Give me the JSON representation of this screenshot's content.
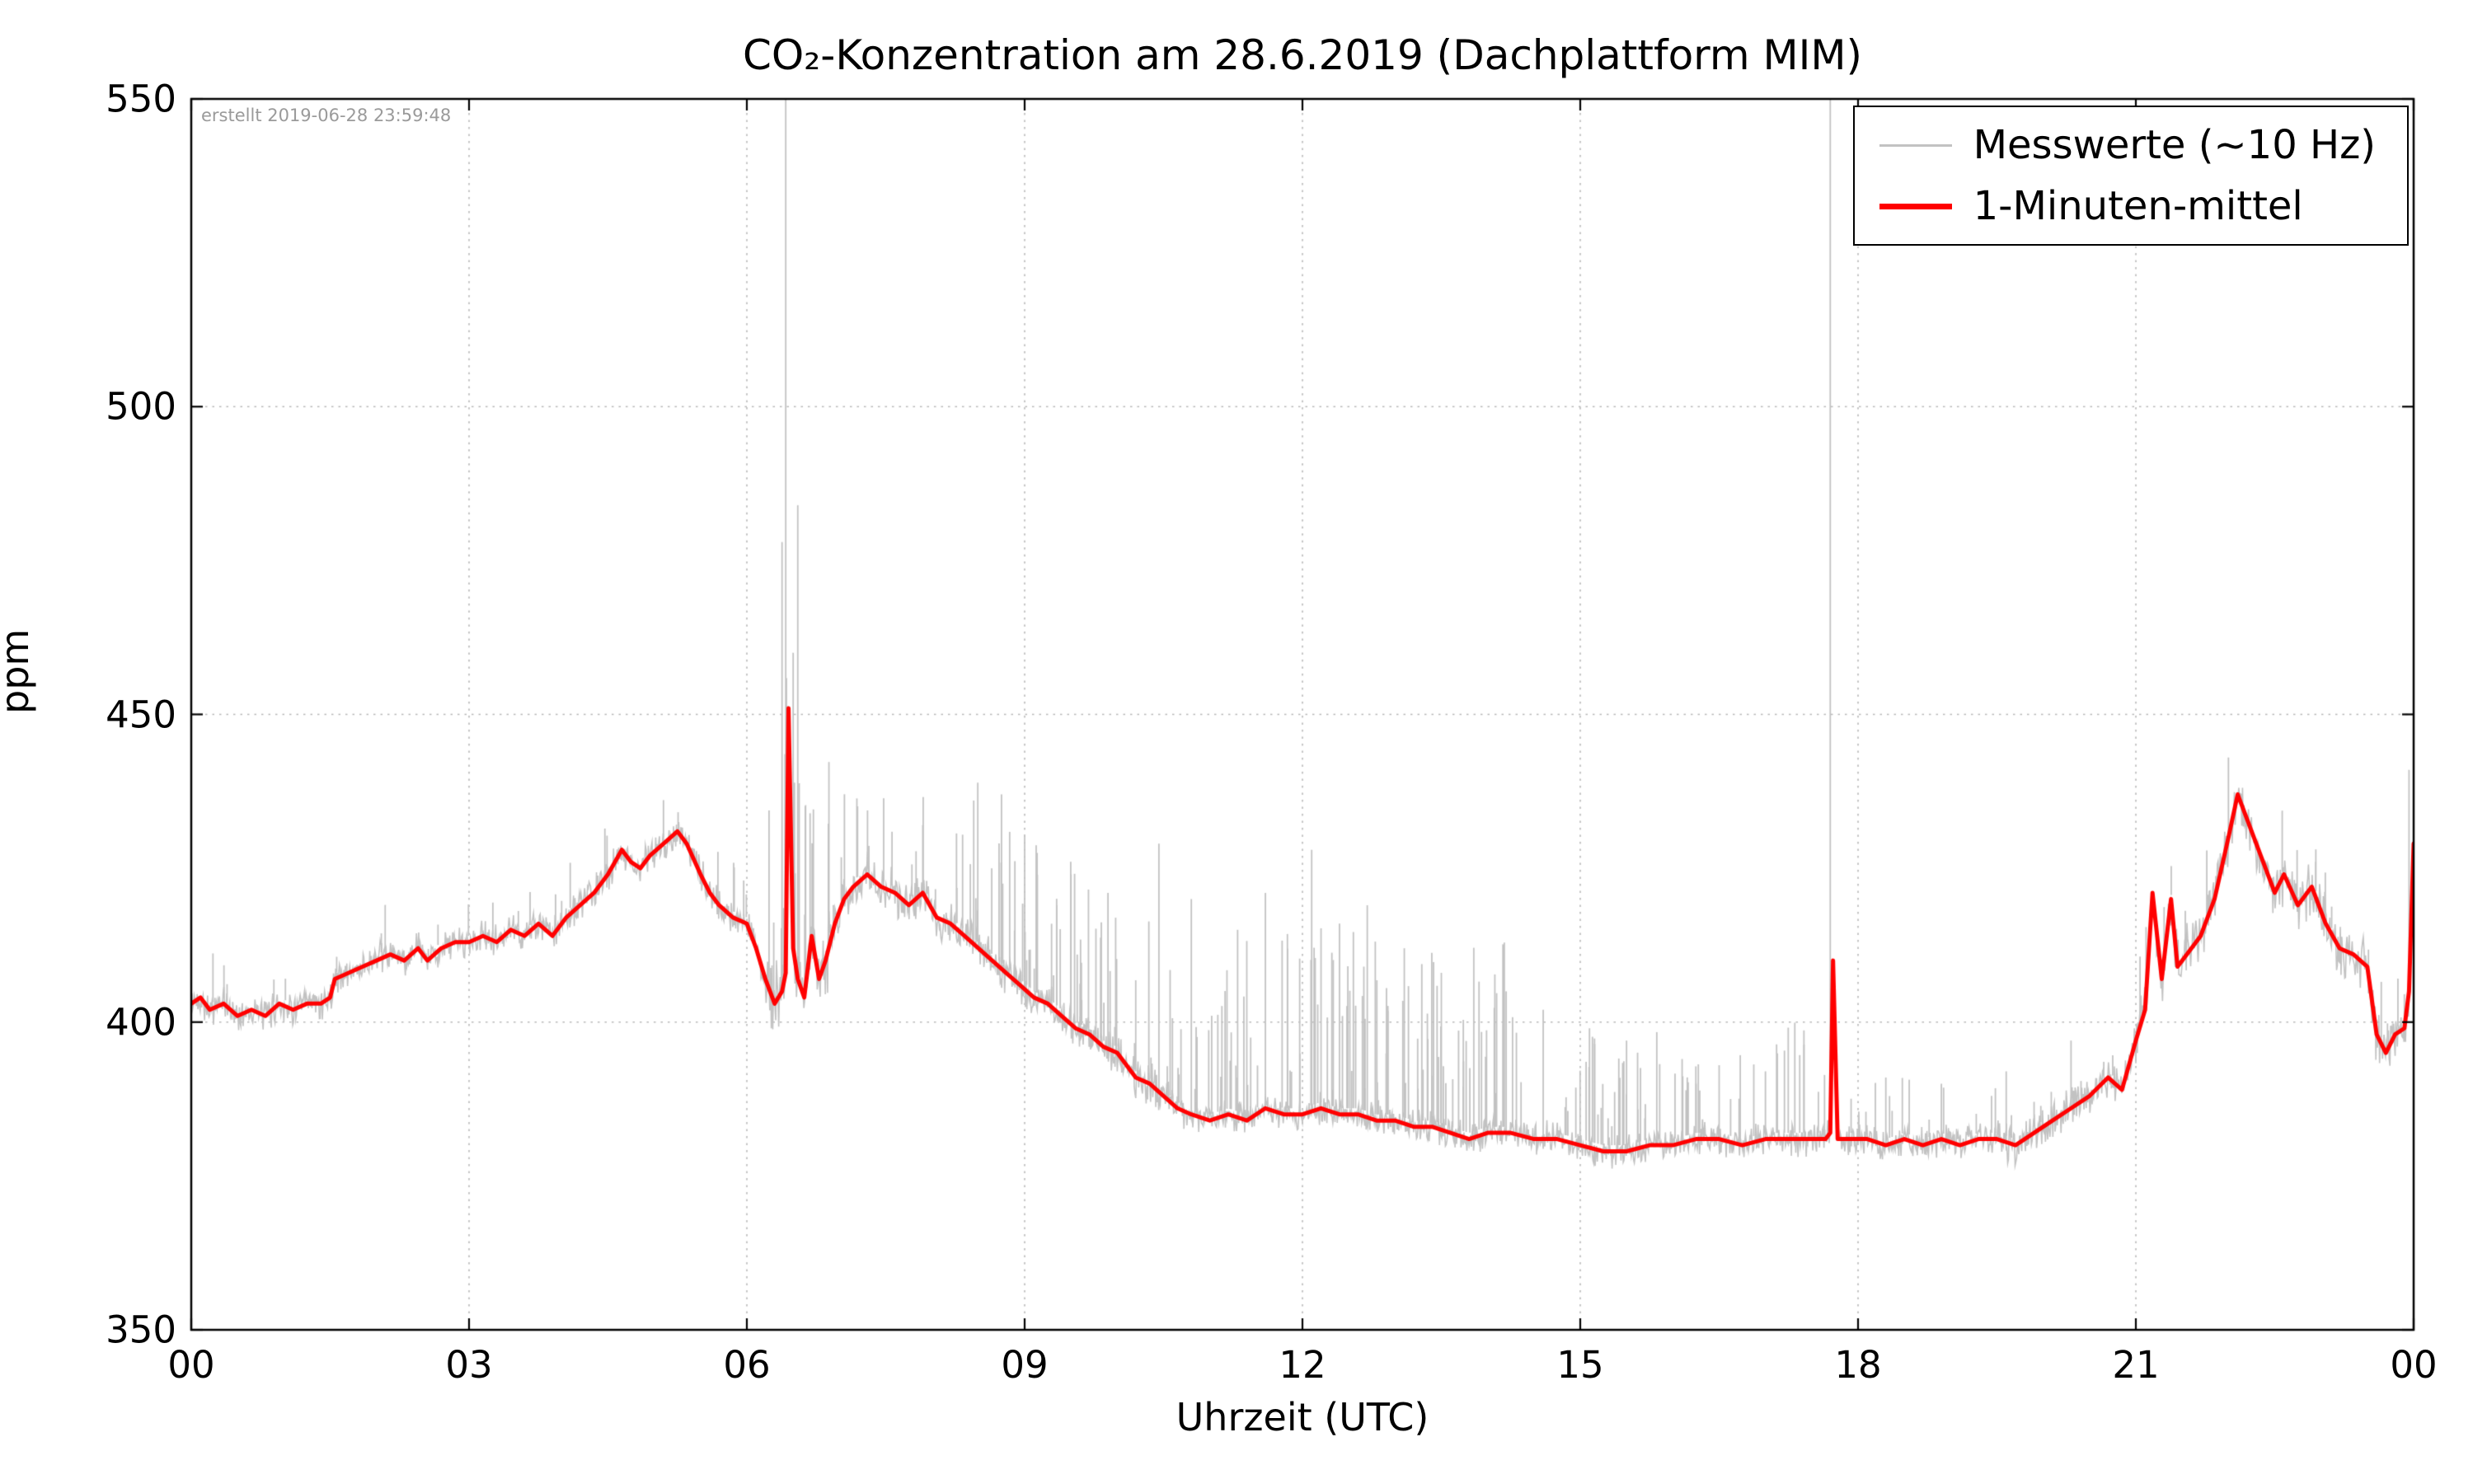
{
  "chart_data": {
    "type": "line",
    "title": "CO₂-Konzentration am 28.6.2019 (Dachplattform MIM)",
    "xlabel": "Uhrzeit (UTC)",
    "ylabel": "ppm",
    "created_note": "erstellt 2019-06-28 23:59:48",
    "xlim": [
      0,
      24
    ],
    "ylim": [
      350,
      550
    ],
    "x_ticks": [
      0,
      3,
      6,
      9,
      12,
      15,
      18,
      21,
      24
    ],
    "x_tick_labels": [
      "00",
      "03",
      "06",
      "09",
      "12",
      "15",
      "18",
      "21",
      "00"
    ],
    "y_ticks": [
      350,
      400,
      450,
      500,
      550
    ],
    "y_tick_labels": [
      "350",
      "400",
      "450",
      "500",
      "550"
    ],
    "grid": true,
    "legend_position": "upper right",
    "noise_seed": 42,
    "series": [
      {
        "name": "Messwerte (~10 Hz)",
        "color": "#c2c2c2",
        "role": "raw-10hz-band-derived-from-mean"
      },
      {
        "name": "1-Minuten-mittel",
        "color": "#ff0000",
        "x": [
          0.0,
          0.1,
          0.2,
          0.35,
          0.5,
          0.65,
          0.8,
          0.95,
          1.1,
          1.25,
          1.4,
          1.5,
          1.55,
          1.7,
          1.85,
          2.0,
          2.15,
          2.3,
          2.45,
          2.55,
          2.7,
          2.85,
          3.0,
          3.15,
          3.3,
          3.45,
          3.6,
          3.75,
          3.9,
          4.05,
          4.2,
          4.35,
          4.5,
          4.65,
          4.75,
          4.85,
          4.95,
          5.1,
          5.25,
          5.35,
          5.5,
          5.6,
          5.7,
          5.85,
          6.0,
          6.1,
          6.2,
          6.3,
          6.38,
          6.42,
          6.45,
          6.5,
          6.55,
          6.62,
          6.7,
          6.78,
          6.85,
          6.95,
          7.05,
          7.15,
          7.3,
          7.45,
          7.6,
          7.75,
          7.9,
          8.05,
          8.2,
          8.35,
          8.5,
          8.65,
          8.8,
          8.95,
          9.1,
          9.25,
          9.4,
          9.55,
          9.7,
          9.85,
          10.0,
          10.1,
          10.2,
          10.35,
          10.5,
          10.65,
          10.8,
          11.0,
          11.2,
          11.4,
          11.6,
          11.8,
          12.0,
          12.2,
          12.4,
          12.6,
          12.8,
          13.0,
          13.2,
          13.4,
          13.6,
          13.8,
          14.0,
          14.25,
          14.5,
          14.75,
          15.0,
          15.25,
          15.5,
          15.75,
          16.0,
          16.25,
          16.5,
          16.75,
          17.0,
          17.25,
          17.5,
          17.65,
          17.7,
          17.73,
          17.78,
          17.9,
          18.1,
          18.3,
          18.5,
          18.7,
          18.9,
          19.1,
          19.3,
          19.5,
          19.7,
          19.9,
          20.1,
          20.3,
          20.5,
          20.7,
          20.85,
          21.0,
          21.1,
          21.18,
          21.28,
          21.38,
          21.45,
          21.55,
          21.7,
          21.85,
          22.0,
          22.1,
          22.2,
          22.35,
          22.5,
          22.6,
          22.75,
          22.9,
          23.05,
          23.2,
          23.35,
          23.5,
          23.6,
          23.7,
          23.8,
          23.9,
          23.95,
          24.0
        ],
        "y": [
          403,
          404,
          402,
          403,
          401,
          402,
          401,
          403,
          402,
          403,
          403,
          404,
          407,
          408,
          409,
          410,
          411,
          410,
          412,
          410,
          412,
          413,
          413,
          414,
          413,
          415,
          414,
          416,
          414,
          417,
          419,
          421,
          424,
          428,
          426,
          425,
          427,
          429,
          431,
          429,
          424,
          421,
          419,
          417,
          416,
          412,
          407,
          403,
          405,
          408,
          451,
          412,
          407,
          404,
          414,
          407,
          410,
          416,
          420,
          422,
          424,
          422,
          421,
          419,
          421,
          417,
          416,
          414,
          412,
          410,
          408,
          406,
          404,
          403,
          401,
          399,
          398,
          396,
          395,
          393,
          391,
          390,
          388,
          386,
          385,
          384,
          385,
          384,
          386,
          385,
          385,
          386,
          385,
          385,
          384,
          384,
          383,
          383,
          382,
          381,
          382,
          382,
          381,
          381,
          380,
          379,
          379,
          380,
          380,
          381,
          381,
          380,
          381,
          381,
          381,
          381,
          382,
          410,
          381,
          381,
          381,
          380,
          381,
          380,
          381,
          380,
          381,
          381,
          380,
          382,
          384,
          386,
          388,
          391,
          389,
          397,
          402,
          421,
          407,
          420,
          409,
          411,
          414,
          420,
          430,
          437,
          433,
          427,
          421,
          424,
          419,
          422,
          416,
          412,
          411,
          409,
          398,
          395,
          398,
          399,
          405,
          429
        ]
      }
    ],
    "gray_spikes": [
      {
        "x": 6.38,
        "y": 478
      },
      {
        "x": 6.42,
        "y": 552
      },
      {
        "x": 6.5,
        "y": 460
      },
      {
        "x": 6.55,
        "y": 484
      },
      {
        "x": 7.9,
        "y": 432
      },
      {
        "x": 8.45,
        "y": 436
      },
      {
        "x": 8.75,
        "y": 437
      },
      {
        "x": 9.5,
        "y": 424
      },
      {
        "x": 9.9,
        "y": 421
      },
      {
        "x": 10.45,
        "y": 429
      },
      {
        "x": 10.8,
        "y": 420
      },
      {
        "x": 11.3,
        "y": 415
      },
      {
        "x": 11.6,
        "y": 421
      },
      {
        "x": 12.1,
        "y": 428
      },
      {
        "x": 12.4,
        "y": 416
      },
      {
        "x": 12.7,
        "y": 419
      },
      {
        "x": 13.1,
        "y": 412
      },
      {
        "x": 13.5,
        "y": 408
      },
      {
        "x": 14.2,
        "y": 405
      },
      {
        "x": 14.6,
        "y": 402
      },
      {
        "x": 15.1,
        "y": 399
      },
      {
        "x": 15.5,
        "y": 397
      },
      {
        "x": 16.1,
        "y": 394
      },
      {
        "x": 16.5,
        "y": 393
      },
      {
        "x": 17.0,
        "y": 392
      },
      {
        "x": 17.7,
        "y": 552
      },
      {
        "x": 18.3,
        "y": 391
      },
      {
        "x": 18.9,
        "y": 390
      },
      {
        "x": 19.6,
        "y": 392
      },
      {
        "x": 20.3,
        "y": 397
      },
      {
        "x": 22.0,
        "y": 443
      },
      {
        "x": 23.95,
        "y": 441
      }
    ],
    "noise_regions": [
      {
        "x0": 0.0,
        "x1": 6.2,
        "amp": 2.2,
        "spikes_per_hour": 4,
        "spike_max": 6
      },
      {
        "x0": 6.2,
        "x1": 6.9,
        "amp": 5.0,
        "spikes_per_hour": 25,
        "spike_max": 35
      },
      {
        "x0": 6.9,
        "x1": 8.3,
        "amp": 3.0,
        "spikes_per_hour": 12,
        "spike_max": 14
      },
      {
        "x0": 8.3,
        "x1": 10.6,
        "amp": 2.8,
        "spikes_per_hour": 22,
        "spike_max": 24
      },
      {
        "x0": 10.6,
        "x1": 14.2,
        "amp": 2.2,
        "spikes_per_hour": 26,
        "spike_max": 28
      },
      {
        "x0": 14.2,
        "x1": 17.5,
        "amp": 2.2,
        "spikes_per_hour": 16,
        "spike_max": 16
      },
      {
        "x0": 17.5,
        "x1": 19.5,
        "amp": 2.2,
        "spikes_per_hour": 8,
        "spike_max": 9
      },
      {
        "x0": 19.5,
        "x1": 21.0,
        "amp": 2.8,
        "spikes_per_hour": 5,
        "spike_max": 7
      },
      {
        "x0": 21.0,
        "x1": 24.0,
        "amp": 4.0,
        "spikes_per_hour": 6,
        "spike_max": 9
      }
    ]
  }
}
